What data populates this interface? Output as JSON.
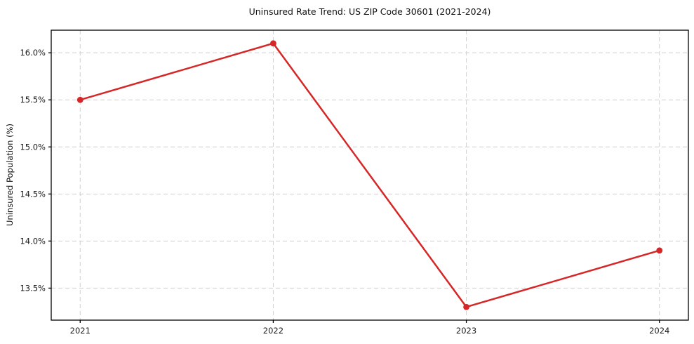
{
  "chart_data": {
    "type": "line",
    "title": "Uninsured Rate Trend: US ZIP Code 30601 (2021-2024)",
    "xlabel": "",
    "ylabel": "Uninsured Population (%)",
    "x": [
      2021,
      2022,
      2023,
      2024
    ],
    "values": [
      15.5,
      16.1,
      13.3,
      13.9
    ],
    "xtick_labels": [
      "2021",
      "2022",
      "2023",
      "2024"
    ],
    "ytick_values": [
      13.5,
      14.0,
      14.5,
      15.0,
      15.5,
      16.0
    ],
    "ytick_labels": [
      "13.5%",
      "14.0%",
      "14.5%",
      "15.0%",
      "15.5%",
      "16.0%"
    ],
    "xlim": [
      2020.85,
      2024.15
    ],
    "ylim": [
      13.16,
      16.24
    ],
    "grid": true,
    "grid_style": "dashed",
    "legend_position": "none",
    "line_color": "#d62728",
    "marker": "circle",
    "grid_color": "#c8c8c8",
    "axis_color": "#000000",
    "background_color": "#ffffff"
  }
}
